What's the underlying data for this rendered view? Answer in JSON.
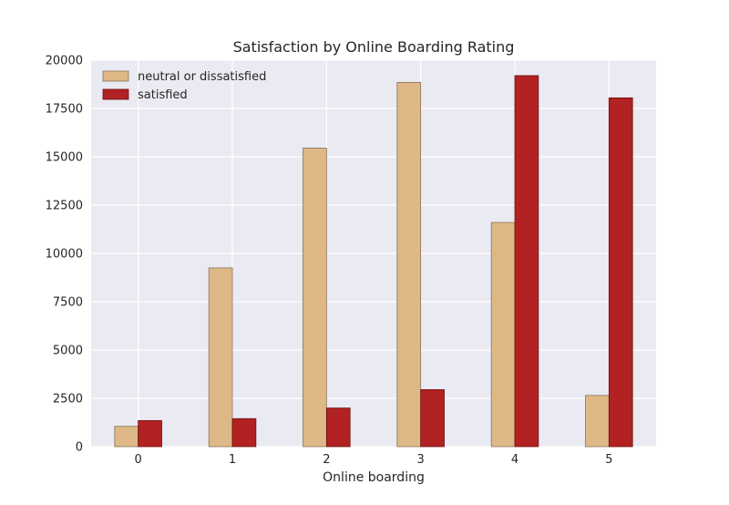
{
  "chart_data": {
    "type": "bar",
    "title": "Satisfaction by Online Boarding Rating",
    "xlabel": "Online boarding",
    "ylabel": "",
    "categories": [
      "0",
      "1",
      "2",
      "3",
      "4",
      "5"
    ],
    "ylim": [
      0,
      20000
    ],
    "yticks": [
      "0",
      "2500",
      "5000",
      "7500",
      "10000",
      "12500",
      "15000",
      "17500",
      "20000"
    ],
    "grid": true,
    "legend_position": "top-left",
    "series": [
      {
        "name": "neutral or dissatisfied",
        "color": "#deb887",
        "values": [
          1050,
          9250,
          15450,
          18850,
          11600,
          2650
        ]
      },
      {
        "name": "satisfied",
        "color": "#b22222",
        "values": [
          1350,
          1450,
          2000,
          2950,
          19200,
          18050
        ]
      }
    ]
  }
}
